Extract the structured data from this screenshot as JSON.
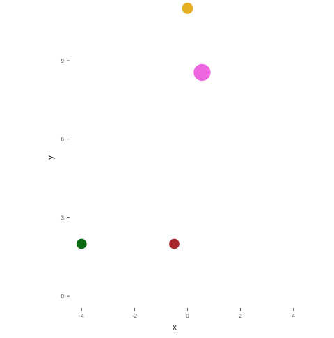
{
  "chart_data": {
    "type": "scatter",
    "title": "",
    "xlabel": "x",
    "ylabel": "y",
    "xlim": [
      -4.4,
      4.9
    ],
    "ylim": [
      -0.45,
      11.05
    ],
    "grid": false,
    "x_ticks": [
      {
        "value": -4,
        "label": "-4"
      },
      {
        "value": -2,
        "label": "-2"
      },
      {
        "value": 0,
        "label": "0"
      },
      {
        "value": 2,
        "label": "2"
      },
      {
        "value": 4,
        "label": "4"
      }
    ],
    "y_ticks": [
      {
        "value": 0,
        "label": "0"
      },
      {
        "value": 3,
        "label": "3"
      },
      {
        "value": 6,
        "label": "6"
      },
      {
        "value": 9,
        "label": "9"
      }
    ],
    "points": [
      {
        "x": 0.0,
        "y": 11.0,
        "size": 1.0,
        "color": "#E6AE22"
      },
      {
        "x": 0.55,
        "y": 8.55,
        "size": 2.3,
        "color": "#EE66E0"
      },
      {
        "x": -4.0,
        "y": 2.0,
        "size": 0.85,
        "color": "#0B6B12"
      },
      {
        "x": -0.5,
        "y": 2.0,
        "size": 0.85,
        "color": "#A8272B"
      }
    ]
  }
}
